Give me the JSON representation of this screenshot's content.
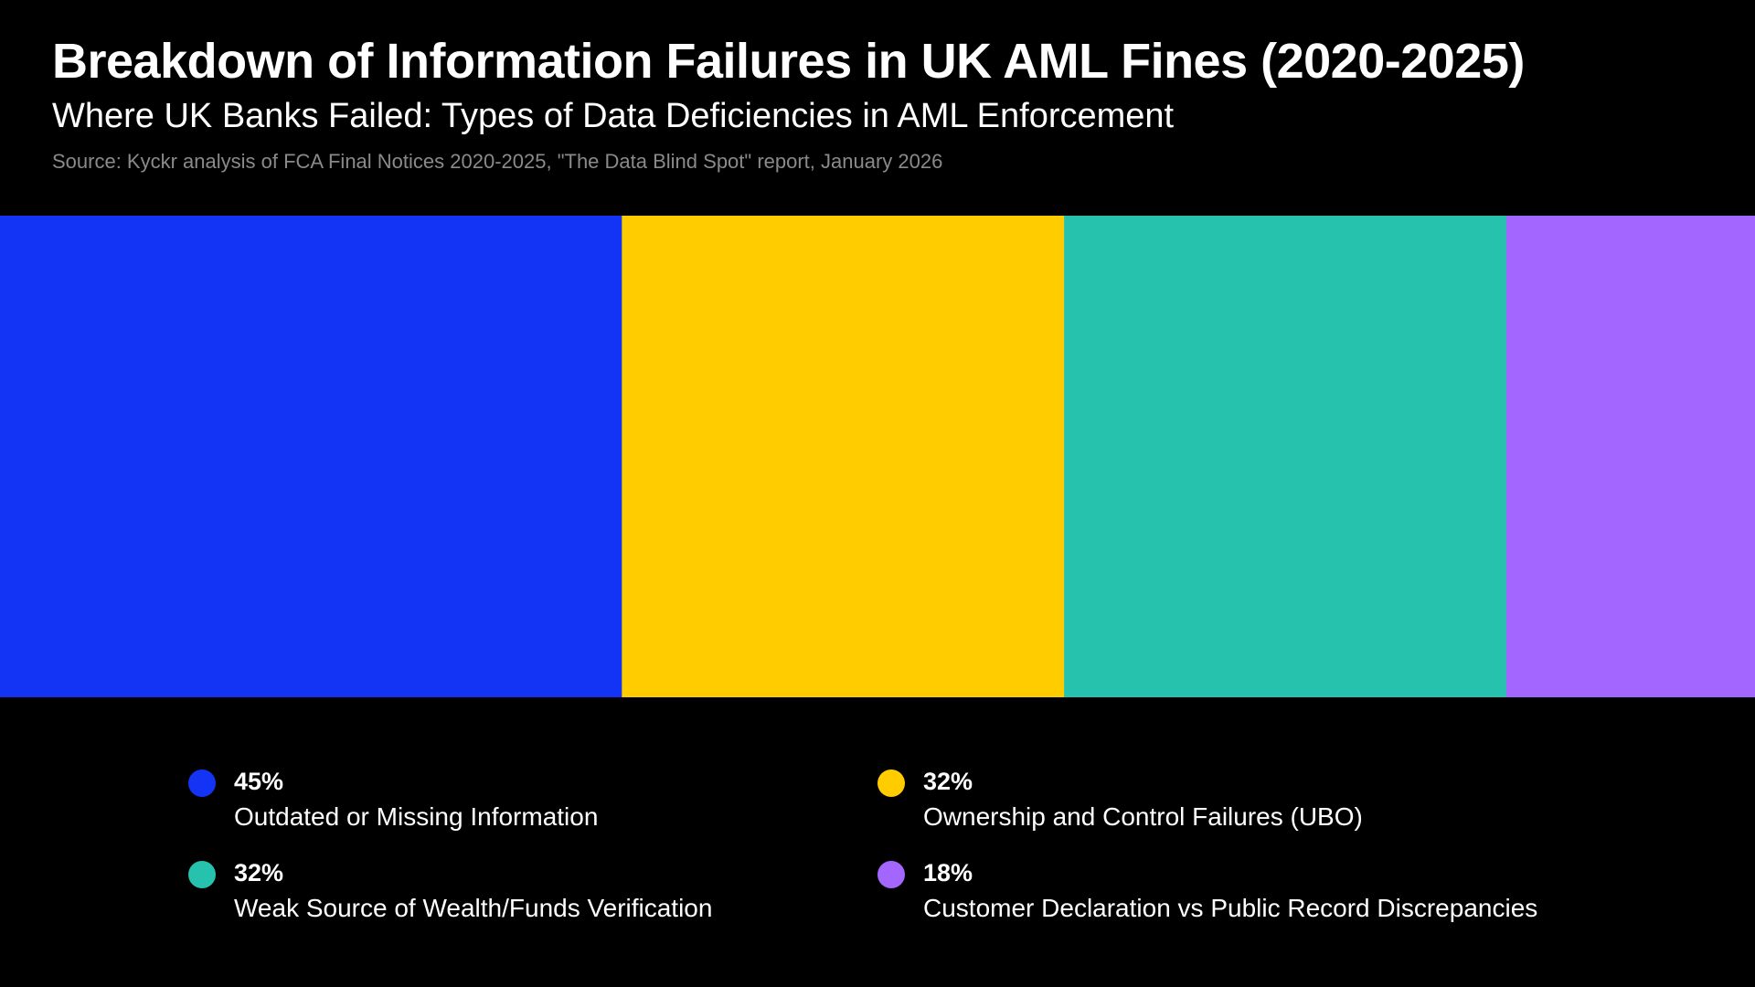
{
  "chart_data": {
    "type": "bar",
    "variant": "proportional-stacked-strip",
    "title": "Breakdown of Information Failures in UK AML Fines (2020-2025)",
    "subtitle": "Where UK Banks Failed: Types of Data Deficiencies in AML Enforcement",
    "source": "Source: Kyckr analysis of FCA Final Notices 2020-2025, \"The Data Blind Spot\" report, January 2026",
    "legend_position": "bottom",
    "grid": false,
    "unit": "%",
    "categories": [
      {
        "label": "Outdated or Missing Information",
        "value": 45,
        "display": "45%",
        "color": "#1434F5"
      },
      {
        "label": "Ownership and Control Failures (UBO)",
        "value": 32,
        "display": "32%",
        "color": "#FFCC00"
      },
      {
        "label": "Weak Source of Wealth/Funds Verification",
        "value": 32,
        "display": "32%",
        "color": "#26C2AE"
      },
      {
        "label": "Customer Declaration vs Public Record Discrepancies",
        "value": 18,
        "display": "18%",
        "color": "#A366FF"
      }
    ]
  }
}
